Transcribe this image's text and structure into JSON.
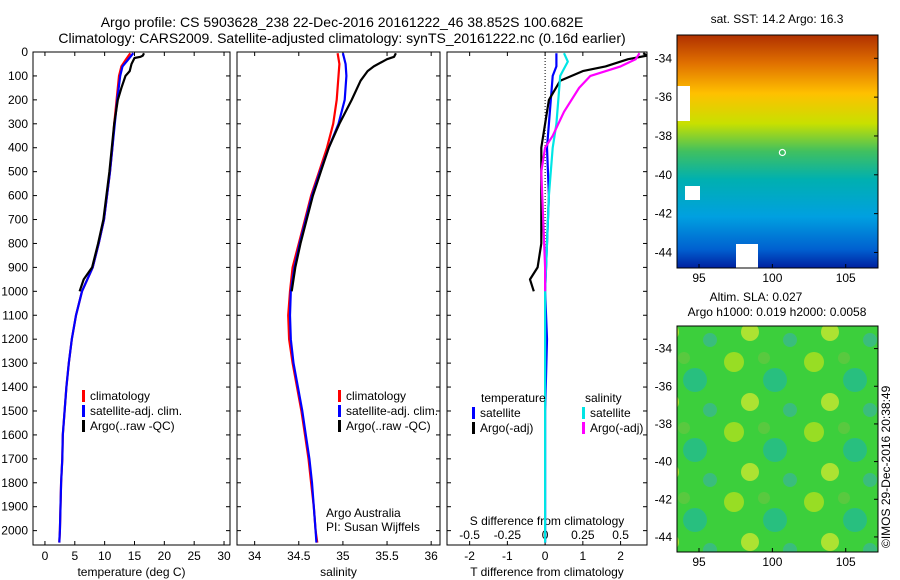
{
  "header": {
    "line1": "Argo profile: CS 5903628_238 22-Dec-2016 20161222_46 38.852S 100.682E",
    "line2": "Climatology: CARS2009. Satellite-adjusted climatology: synTS_20161222.nc (0.16d earlier)"
  },
  "colors": {
    "climatology": "#ff0000",
    "satellite": "#0000ff",
    "argo": "#000000",
    "salinity_satellite": "#00e5e5",
    "salinity_argo": "#ff00ff"
  },
  "depth_axis": {
    "ticks": [
      0,
      100,
      200,
      300,
      400,
      500,
      600,
      700,
      800,
      900,
      1000,
      1100,
      1200,
      1300,
      1400,
      1500,
      1600,
      1700,
      1800,
      1900,
      2000
    ],
    "range": [
      0,
      2060
    ]
  },
  "chart_data": [
    {
      "type": "line",
      "xlabel": "temperature (deg C)",
      "xlim": [
        -2,
        31
      ],
      "xticks": [
        0,
        5,
        10,
        15,
        20,
        25,
        30
      ],
      "ylim": [
        2060,
        0
      ],
      "legend": {
        "placement": "lower-left",
        "items": [
          {
            "label": "climatology",
            "color": "#ff0000"
          },
          {
            "label": "satellite-adj. clim.",
            "color": "#0000ff"
          },
          {
            "label": "Argo(..raw -QC)",
            "color": "#000000"
          }
        ]
      },
      "series": [
        {
          "name": "climatology",
          "color": "#ff0000",
          "points": [
            [
              14.3,
              5
            ],
            [
              13.6,
              30
            ],
            [
              12.8,
              60
            ],
            [
              12.4,
              100
            ],
            [
              12.0,
              200
            ],
            [
              11.6,
              300
            ],
            [
              11.3,
              400
            ],
            [
              10.9,
              500
            ],
            [
              10.4,
              600
            ],
            [
              9.9,
              700
            ],
            [
              9.0,
              800
            ],
            [
              8.0,
              900
            ],
            [
              6.2,
              1000
            ],
            [
              5.2,
              1100
            ],
            [
              4.5,
              1200
            ],
            [
              4.0,
              1300
            ],
            [
              3.6,
              1400
            ],
            [
              3.3,
              1500
            ],
            [
              3.0,
              1600
            ],
            [
              2.9,
              1700
            ],
            [
              2.7,
              1800
            ],
            [
              2.6,
              1900
            ],
            [
              2.5,
              2000
            ],
            [
              2.4,
              2050
            ]
          ]
        },
        {
          "name": "satellite-adj. clim.",
          "color": "#0000ff",
          "points": [
            [
              14.8,
              5
            ],
            [
              14.0,
              30
            ],
            [
              13.0,
              60
            ],
            [
              12.6,
              100
            ],
            [
              12.1,
              200
            ],
            [
              11.7,
              300
            ],
            [
              11.3,
              400
            ],
            [
              10.9,
              500
            ],
            [
              10.4,
              600
            ],
            [
              9.9,
              700
            ],
            [
              9.0,
              800
            ],
            [
              8.0,
              900
            ],
            [
              6.2,
              1000
            ],
            [
              5.2,
              1100
            ],
            [
              4.5,
              1200
            ],
            [
              4.0,
              1300
            ],
            [
              3.6,
              1400
            ],
            [
              3.3,
              1500
            ],
            [
              3.0,
              1600
            ],
            [
              2.9,
              1700
            ],
            [
              2.7,
              1800
            ],
            [
              2.6,
              1900
            ],
            [
              2.5,
              2000
            ],
            [
              2.4,
              2050
            ]
          ]
        },
        {
          "name": "Argo(..raw -QC)",
          "color": "#000000",
          "points": [
            [
              16.6,
              5
            ],
            [
              16.4,
              15
            ],
            [
              16.0,
              20
            ],
            [
              15.0,
              25
            ],
            [
              14.5,
              50
            ],
            [
              14.2,
              80
            ],
            [
              13.5,
              100
            ],
            [
              12.8,
              150
            ],
            [
              12.2,
              200
            ],
            [
              11.6,
              300
            ],
            [
              11.2,
              400
            ],
            [
              10.8,
              500
            ],
            [
              10.3,
              600
            ],
            [
              9.8,
              700
            ],
            [
              8.9,
              800
            ],
            [
              7.9,
              900
            ],
            [
              6.5,
              950
            ],
            [
              5.8,
              1000
            ]
          ]
        }
      ]
    },
    {
      "type": "line",
      "xlabel": "salinity",
      "xlim": [
        33.8,
        36.1
      ],
      "xticks": [
        34,
        34.5,
        35,
        35.5,
        36
      ],
      "ylim": [
        2060,
        0
      ],
      "legend": {
        "placement": "lower-right",
        "items": [
          {
            "label": "climatology",
            "color": "#ff0000"
          },
          {
            "label": "satellite-adj. clim.",
            "color": "#0000ff"
          },
          {
            "label": "Argo(..raw -QC)",
            "color": "#000000"
          }
        ]
      },
      "annotations": [
        "Argo Australia",
        "PI: Susan Wijffels"
      ],
      "series": [
        {
          "name": "climatology",
          "color": "#ff0000",
          "points": [
            [
              34.94,
              5
            ],
            [
              34.96,
              50
            ],
            [
              34.95,
              100
            ],
            [
              34.93,
              200
            ],
            [
              34.89,
              300
            ],
            [
              34.82,
              400
            ],
            [
              34.73,
              500
            ],
            [
              34.64,
              600
            ],
            [
              34.57,
              700
            ],
            [
              34.5,
              800
            ],
            [
              34.43,
              900
            ],
            [
              34.4,
              1000
            ],
            [
              34.38,
              1100
            ],
            [
              34.39,
              1200
            ],
            [
              34.43,
              1300
            ],
            [
              34.48,
              1400
            ],
            [
              34.53,
              1500
            ],
            [
              34.57,
              1600
            ],
            [
              34.61,
              1700
            ],
            [
              34.64,
              1800
            ],
            [
              34.67,
              1900
            ],
            [
              34.69,
              2000
            ],
            [
              34.71,
              2050
            ]
          ]
        },
        {
          "name": "satellite-adj. clim.",
          "color": "#0000ff",
          "points": [
            [
              35.0,
              5
            ],
            [
              35.03,
              50
            ],
            [
              35.04,
              100
            ],
            [
              35.02,
              200
            ],
            [
              34.95,
              300
            ],
            [
              34.84,
              400
            ],
            [
              34.74,
              500
            ],
            [
              34.65,
              600
            ],
            [
              34.58,
              700
            ],
            [
              34.51,
              800
            ],
            [
              34.45,
              900
            ],
            [
              34.41,
              1000
            ],
            [
              34.4,
              1100
            ],
            [
              34.41,
              1200
            ],
            [
              34.44,
              1300
            ],
            [
              34.49,
              1400
            ],
            [
              34.54,
              1500
            ],
            [
              34.58,
              1600
            ],
            [
              34.62,
              1700
            ],
            [
              34.65,
              1800
            ],
            [
              34.67,
              1900
            ],
            [
              34.69,
              2000
            ],
            [
              34.7,
              2050
            ]
          ]
        },
        {
          "name": "Argo(..raw -QC)",
          "color": "#000000",
          "points": [
            [
              35.6,
              5
            ],
            [
              35.58,
              20
            ],
            [
              35.5,
              30
            ],
            [
              35.35,
              60
            ],
            [
              35.28,
              80
            ],
            [
              35.2,
              120
            ],
            [
              35.1,
              200
            ],
            [
              34.96,
              300
            ],
            [
              34.84,
              400
            ],
            [
              34.75,
              500
            ],
            [
              34.66,
              600
            ],
            [
              34.59,
              700
            ],
            [
              34.52,
              800
            ],
            [
              34.46,
              900
            ],
            [
              34.42,
              1000
            ]
          ]
        }
      ]
    },
    {
      "type": "line",
      "xlabel": "T difference from climatology",
      "xlim": [
        -2.6,
        2.7
      ],
      "xticks": [
        -2,
        -1,
        0,
        1,
        2
      ],
      "secondary_xlabel": "S difference from climatology",
      "secondary_xticks": [
        "-0.5",
        "-0.25",
        "0",
        "0.25",
        "0.5"
      ],
      "secondary_xtick_positions": [
        -2,
        -1,
        0,
        1,
        2
      ],
      "ylim": [
        2060,
        0
      ],
      "legend": {
        "placement": "lower-center",
        "groups": [
          {
            "title": "temperature",
            "items": [
              {
                "label": "satellite",
                "color": "#0000ff"
              },
              {
                "label": "Argo(-adj)",
                "color": "#000000"
              }
            ]
          },
          {
            "title": "salinity",
            "items": [
              {
                "label": "satellite",
                "color": "#00e5e5"
              },
              {
                "label": "Argo(-adj)",
                "color": "#ff00ff"
              }
            ]
          }
        ]
      },
      "series": [
        {
          "name": "temperature satellite",
          "color": "#0000ff",
          "points": [
            [
              0.3,
              5
            ],
            [
              0.3,
              60
            ],
            [
              0.2,
              100
            ],
            [
              0.15,
              200
            ],
            [
              0.1,
              300
            ],
            [
              0.05,
              400
            ],
            [
              0.1,
              600
            ],
            [
              0.05,
              800
            ],
            [
              0.0,
              1000
            ],
            [
              0.05,
              1200
            ],
            [
              0.0,
              1500
            ],
            [
              0.0,
              1800
            ],
            [
              0.0,
              2050
            ]
          ]
        },
        {
          "name": "temperature Argo(-adj)",
          "color": "#000000",
          "points": [
            [
              2.6,
              5
            ],
            [
              2.7,
              15
            ],
            [
              2.2,
              30
            ],
            [
              1.6,
              60
            ],
            [
              1.0,
              80
            ],
            [
              0.4,
              120
            ],
            [
              0.1,
              200
            ],
            [
              0.0,
              300
            ],
            [
              -0.1,
              400
            ],
            [
              -0.1,
              600
            ],
            [
              -0.1,
              800
            ],
            [
              -0.2,
              900
            ],
            [
              -0.4,
              950
            ],
            [
              -0.3,
              1000
            ]
          ]
        },
        {
          "name": "salinity satellite",
          "color": "#00e5e5",
          "points": [
            [
              0.5,
              5
            ],
            [
              0.6,
              40
            ],
            [
              0.4,
              100
            ],
            [
              0.35,
              200
            ],
            [
              0.3,
              300
            ],
            [
              0.2,
              400
            ],
            [
              0.1,
              600
            ],
            [
              0.05,
              800
            ],
            [
              0.0,
              1000
            ],
            [
              0.0,
              1500
            ],
            [
              0.0,
              2050
            ]
          ]
        },
        {
          "name": "salinity Argo(-adj)",
          "color": "#ff00ff",
          "points": [
            [
              2.5,
              5
            ],
            [
              2.4,
              30
            ],
            [
              2.0,
              60
            ],
            [
              1.2,
              100
            ],
            [
              0.9,
              150
            ],
            [
              0.5,
              250
            ],
            [
              0.2,
              350
            ],
            [
              0.0,
              400
            ],
            [
              -0.1,
              500
            ],
            [
              -0.05,
              700
            ],
            [
              0.0,
              900
            ],
            [
              0.0,
              1000
            ]
          ]
        }
      ]
    },
    {
      "type": "heatmap",
      "title": "sat. SST: 14.2  Argo: 16.3",
      "xticks": [
        95,
        100,
        105
      ],
      "yticks": [
        -34,
        -36,
        -38,
        -40,
        -42,
        -44
      ],
      "xlim": [
        93.5,
        107.2
      ],
      "ylim": [
        -44.8,
        -32.8
      ],
      "argo_position": [
        100.682,
        -38.852
      ]
    },
    {
      "type": "heatmap",
      "title": "Altim. SLA: 0.027",
      "subtitle": "Argo h1000: 0.019  h2000: 0.0058",
      "xticks": [
        95,
        100,
        105
      ],
      "yticks": [
        -34,
        -36,
        -38,
        -40,
        -42,
        -44
      ],
      "xlim": [
        93.5,
        107.2
      ],
      "ylim": [
        -44.8,
        -32.8
      ]
    }
  ],
  "footer": {
    "credit": "©IMOS 29-Dec-2016 20:38:49"
  }
}
